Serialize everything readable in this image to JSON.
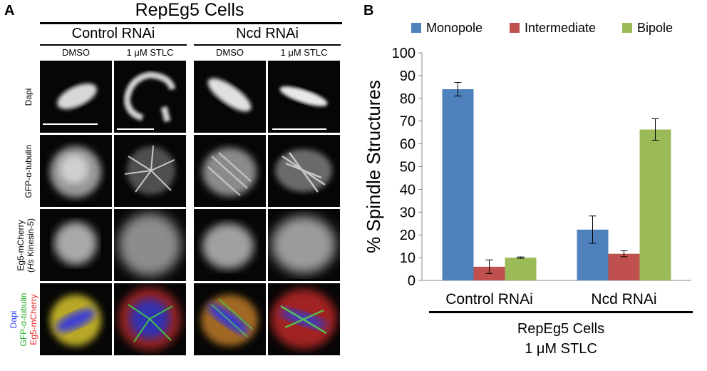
{
  "panel_a": {
    "letter": "A",
    "title": "RepEg5 Cells",
    "groups": [
      {
        "label": "Control RNAi",
        "conditions": [
          "DMSO",
          "1 μM STLC"
        ]
      },
      {
        "label": "Ncd RNAi",
        "conditions": [
          "DMSO",
          "1 μM STLC"
        ]
      }
    ],
    "row_labels": {
      "dapi": "Dapi",
      "tubulin": "GFP-α-tubulin",
      "eg5_line1": "Eg5-mCherry",
      "eg5_line2_open": "(",
      "eg5_line2_italic": "Hs",
      "eg5_line2_rest": " Kinesin-5)",
      "merge_dapi": "Dapi",
      "merge_tubulin": "GFP-α-tubulin",
      "merge_eg5": "Eg5-mCherry"
    },
    "colors": {
      "dapi": "#3344ff",
      "tubulin": "#22aa22",
      "eg5": "#ee2222"
    }
  },
  "panel_b": {
    "letter": "B",
    "footer_line1": "RepEg5 Cells",
    "footer_line2": "1 μM STLC"
  },
  "chart_data": {
    "type": "bar",
    "categories": [
      "Control RNAi",
      "Ncd RNAi"
    ],
    "series": [
      {
        "name": "Monopole",
        "color": "#4f81bd",
        "values": [
          84,
          22.3
        ],
        "errors": [
          3,
          6
        ]
      },
      {
        "name": "Intermediate",
        "color": "#c0504d",
        "values": [
          6,
          11.7
        ],
        "errors": [
          3,
          1.3
        ]
      },
      {
        "name": "Bipole",
        "color": "#9bbb59",
        "values": [
          10,
          66.3
        ],
        "errors": [
          0.3,
          4.7
        ]
      }
    ],
    "ylabel": "% Spindle Structures",
    "xlabel": "",
    "ylim": [
      0,
      100
    ],
    "yticks": [
      "0",
      "10",
      "20",
      "30",
      "40",
      "50",
      "60",
      "70",
      "80",
      "90",
      "100"
    ],
    "legend_position": "top",
    "grid": false
  }
}
